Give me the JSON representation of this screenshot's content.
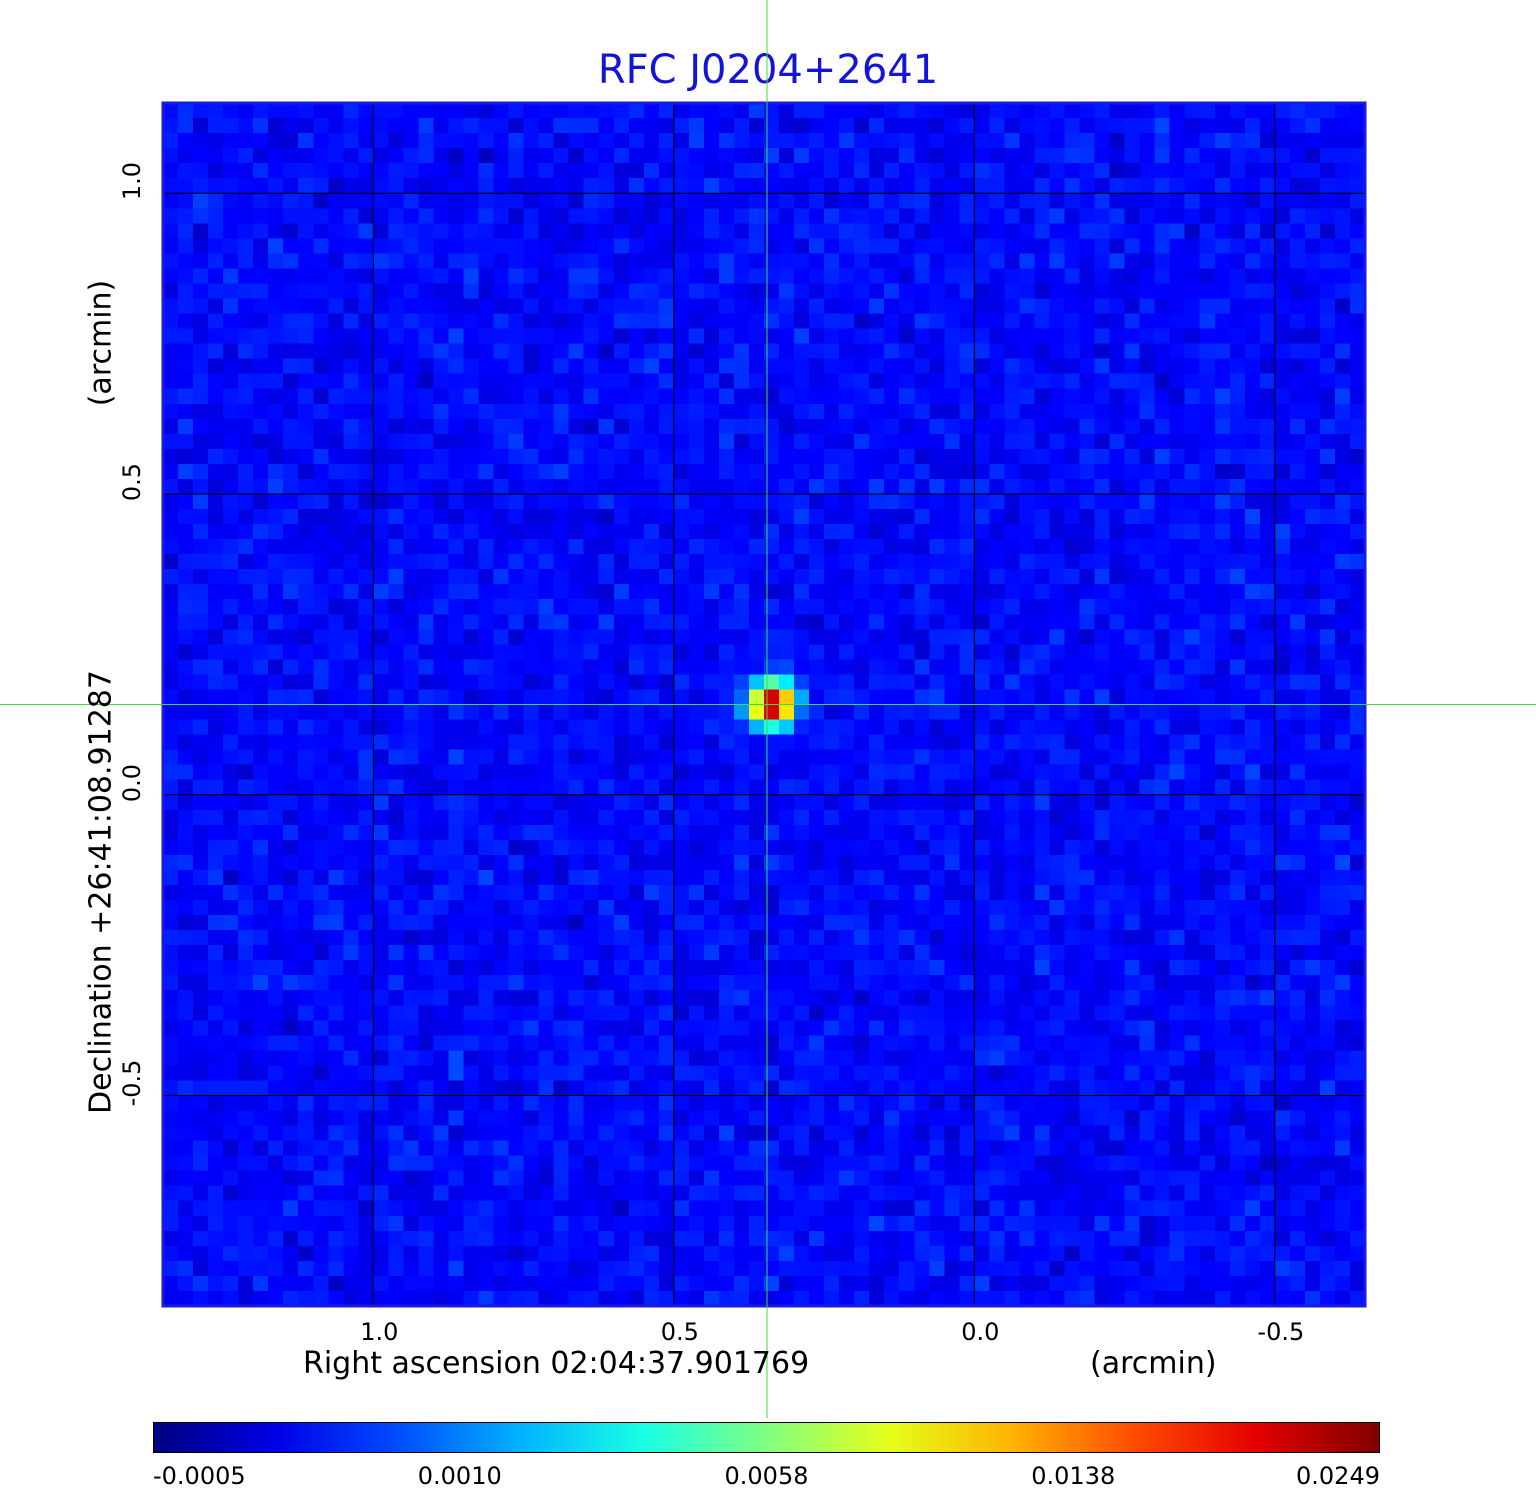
{
  "chart_data": {
    "type": "heatmap",
    "title": "RFC J0204+2641",
    "xlabel": "Right ascension  02:04:37.901769",
    "xunit": "(arcmin)",
    "ylabel": "Declination  +26:41:08.91287",
    "yunit": "(arcmin)",
    "x_ticks": [
      "1.0",
      "0.5",
      "0.0",
      "-0.5"
    ],
    "x_tick_values": [
      1.0,
      0.5,
      0.0,
      -0.5
    ],
    "y_ticks": [
      "1.0",
      "0.5",
      "0.0",
      "-0.5"
    ],
    "y_tick_values": [
      1.0,
      0.5,
      0.0,
      -0.5
    ],
    "xlim": [
      1.35,
      -0.65
    ],
    "ylim": [
      -0.85,
      1.15
    ],
    "grid": true,
    "crosshair": {
      "x": 0.345,
      "y": 0.15
    },
    "source": {
      "x": 0.335,
      "y": 0.15,
      "peak": 0.0249
    },
    "colorbar": {
      "labels": [
        "-0.0005",
        "0.0010",
        "0.0058",
        "0.0138",
        "0.0249"
      ],
      "min": -0.0005,
      "max": 0.0249,
      "colormap": "jet"
    }
  }
}
